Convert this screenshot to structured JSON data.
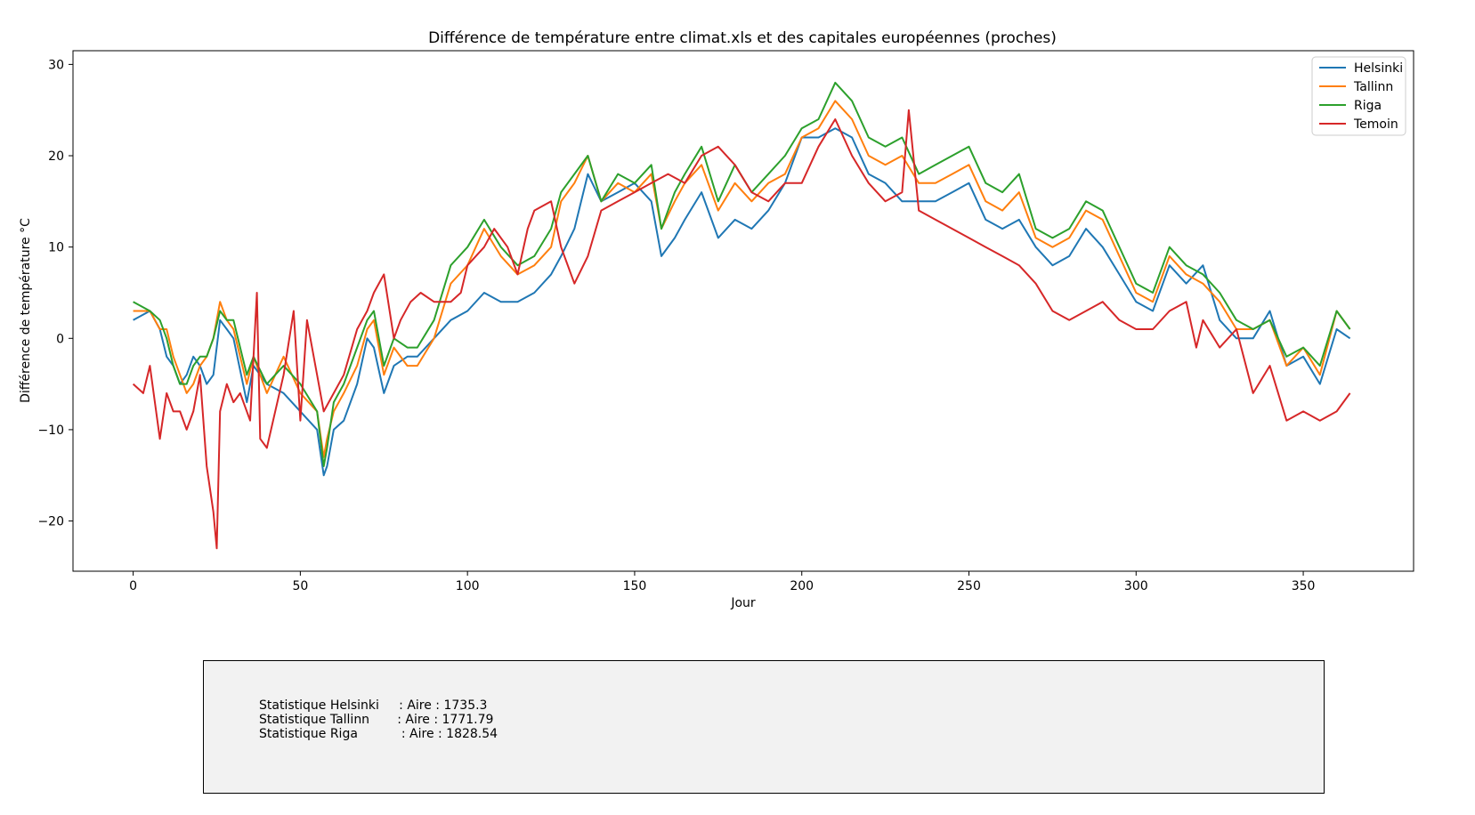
{
  "chart_data": {
    "type": "line",
    "title": "Différence de température entre climat.xls et des capitales européennes (proches)",
    "xlabel": "Jour",
    "ylabel": "Différence de température °C",
    "xlim": [
      -18,
      383
    ],
    "ylim": [
      -25.5,
      31.5
    ],
    "xticks": [
      0,
      50,
      100,
      150,
      200,
      250,
      300,
      350
    ],
    "yticks": [
      -20,
      -10,
      0,
      10,
      20,
      30
    ],
    "xtick_labels": [
      "0",
      "50",
      "100",
      "150",
      "200",
      "250",
      "300",
      "350"
    ],
    "ytick_labels": [
      "−20",
      "−10",
      "0",
      "10",
      "20",
      "30"
    ],
    "grid": false,
    "legend": "top-right",
    "series": [
      {
        "name": "Helsinki",
        "color": "#1f77b4",
        "x": [
          0,
          5,
          8,
          10,
          12,
          14,
          16,
          18,
          20,
          22,
          24,
          26,
          28,
          30,
          34,
          36,
          40,
          45,
          50,
          55,
          57,
          58,
          60,
          63,
          67,
          70,
          72,
          75,
          78,
          82,
          85,
          90,
          95,
          100,
          105,
          110,
          115,
          120,
          125,
          128,
          132,
          136,
          140,
          145,
          150,
          155,
          158,
          162,
          165,
          170,
          175,
          180,
          185,
          190,
          195,
          200,
          205,
          210,
          215,
          220,
          225,
          230,
          235,
          240,
          245,
          250,
          255,
          260,
          265,
          270,
          275,
          280,
          285,
          290,
          295,
          300,
          305,
          310,
          315,
          320,
          325,
          330,
          335,
          340,
          345,
          350,
          355,
          360,
          364
        ],
        "y": [
          2,
          3,
          1,
          -2,
          -3,
          -5,
          -4,
          -2,
          -3,
          -5,
          -4,
          2,
          1,
          0,
          -7,
          -3,
          -5,
          -6,
          -8,
          -10,
          -15,
          -14,
          -10,
          -9,
          -5,
          0,
          -1,
          -6,
          -3,
          -2,
          -2,
          0,
          2,
          3,
          5,
          4,
          4,
          5,
          7,
          9,
          12,
          18,
          15,
          16,
          17,
          15,
          9,
          11,
          13,
          16,
          11,
          13,
          12,
          14,
          17,
          22,
          22,
          23,
          22,
          18,
          17,
          15,
          15,
          15,
          16,
          17,
          13,
          12,
          13,
          10,
          8,
          9,
          12,
          10,
          7,
          4,
          3,
          8,
          6,
          8,
          2,
          0,
          0,
          3,
          -3,
          -2,
          -5,
          1,
          0
        ]
      },
      {
        "name": "Tallinn",
        "color": "#ff7f0e",
        "x": [
          0,
          5,
          8,
          10,
          12,
          14,
          16,
          18,
          20,
          22,
          24,
          26,
          28,
          30,
          34,
          36,
          40,
          45,
          50,
          55,
          57,
          58,
          60,
          63,
          67,
          70,
          72,
          75,
          78,
          82,
          85,
          90,
          95,
          100,
          105,
          110,
          115,
          120,
          125,
          128,
          132,
          136,
          140,
          145,
          150,
          155,
          158,
          162,
          165,
          170,
          175,
          180,
          185,
          190,
          195,
          200,
          205,
          210,
          215,
          220,
          225,
          230,
          235,
          240,
          245,
          250,
          255,
          260,
          265,
          270,
          275,
          280,
          285,
          290,
          295,
          300,
          305,
          310,
          315,
          320,
          325,
          330,
          335,
          340,
          345,
          350,
          355,
          360,
          364
        ],
        "y": [
          3,
          3,
          1,
          1,
          -2,
          -4,
          -6,
          -5,
          -3,
          -2,
          0,
          4,
          2,
          1,
          -5,
          -2,
          -6,
          -2,
          -6,
          -8,
          -13,
          -11,
          -8,
          -6,
          -3,
          1,
          2,
          -4,
          -1,
          -3,
          -3,
          0,
          6,
          8,
          12,
          9,
          7,
          8,
          10,
          15,
          17,
          20,
          15,
          17,
          16,
          18,
          12,
          15,
          17,
          19,
          14,
          17,
          15,
          17,
          18,
          22,
          23,
          26,
          24,
          20,
          19,
          20,
          17,
          17,
          18,
          19,
          15,
          14,
          16,
          11,
          10,
          11,
          14,
          13,
          9,
          5,
          4,
          9,
          7,
          6,
          4,
          1,
          1,
          2,
          -3,
          -1,
          -4,
          3,
          1
        ]
      },
      {
        "name": "Riga",
        "color": "#2ca02c",
        "x": [
          0,
          5,
          8,
          10,
          12,
          14,
          16,
          18,
          20,
          22,
          24,
          26,
          28,
          30,
          34,
          36,
          40,
          45,
          50,
          55,
          57,
          58,
          60,
          63,
          67,
          70,
          72,
          75,
          78,
          82,
          85,
          90,
          95,
          100,
          105,
          110,
          115,
          120,
          125,
          128,
          132,
          136,
          140,
          145,
          150,
          155,
          158,
          162,
          165,
          170,
          175,
          180,
          185,
          190,
          195,
          200,
          205,
          210,
          215,
          220,
          225,
          230,
          235,
          240,
          245,
          250,
          255,
          260,
          265,
          270,
          275,
          280,
          285,
          290,
          295,
          300,
          305,
          310,
          315,
          320,
          325,
          330,
          335,
          340,
          345,
          350,
          355,
          360,
          364
        ],
        "y": [
          4,
          3,
          2,
          0,
          -3,
          -5,
          -5,
          -3,
          -2,
          -2,
          0,
          3,
          2,
          2,
          -4,
          -2,
          -5,
          -3,
          -5,
          -8,
          -14,
          -12,
          -7,
          -5,
          -1,
          2,
          3,
          -3,
          0,
          -1,
          -1,
          2,
          8,
          10,
          13,
          10,
          8,
          9,
          12,
          16,
          18,
          20,
          15,
          18,
          17,
          19,
          12,
          16,
          18,
          21,
          15,
          19,
          16,
          18,
          20,
          23,
          24,
          28,
          26,
          22,
          21,
          22,
          18,
          19,
          20,
          21,
          17,
          16,
          18,
          12,
          11,
          12,
          15,
          14,
          10,
          6,
          5,
          10,
          8,
          7,
          5,
          2,
          1,
          2,
          -2,
          -1,
          -3,
          3,
          1
        ]
      },
      {
        "name": "Temoin",
        "color": "#d62728",
        "x": [
          0,
          3,
          5,
          8,
          10,
          12,
          14,
          16,
          18,
          20,
          22,
          24,
          25,
          26,
          28,
          30,
          32,
          35,
          37,
          38,
          40,
          45,
          48,
          50,
          52,
          55,
          57,
          60,
          63,
          67,
          70,
          72,
          75,
          78,
          80,
          83,
          86,
          90,
          95,
          98,
          100,
          105,
          108,
          112,
          115,
          118,
          120,
          125,
          128,
          132,
          136,
          140,
          145,
          150,
          155,
          160,
          165,
          170,
          175,
          180,
          185,
          190,
          195,
          200,
          205,
          210,
          215,
          220,
          225,
          230,
          232,
          235,
          240,
          245,
          250,
          255,
          260,
          265,
          270,
          275,
          280,
          285,
          290,
          295,
          300,
          305,
          310,
          315,
          318,
          320,
          325,
          330,
          335,
          340,
          345,
          350,
          355,
          360,
          364
        ],
        "y": [
          -5,
          -6,
          -3,
          -11,
          -6,
          -8,
          -8,
          -10,
          -8,
          -4,
          -14,
          -19,
          -23,
          -8,
          -5,
          -7,
          -6,
          -9,
          5,
          -11,
          -12,
          -4,
          3,
          -9,
          2,
          -4,
          -8,
          -6,
          -4,
          1,
          3,
          5,
          7,
          0,
          2,
          4,
          5,
          4,
          4,
          5,
          8,
          10,
          12,
          10,
          7,
          12,
          14,
          15,
          10,
          6,
          9,
          14,
          15,
          16,
          17,
          18,
          17,
          20,
          21,
          19,
          16,
          15,
          17,
          17,
          21,
          24,
          20,
          17,
          15,
          16,
          25,
          14,
          13,
          12,
          11,
          10,
          9,
          8,
          6,
          3,
          2,
          3,
          4,
          2,
          1,
          1,
          3,
          4,
          -1,
          2,
          -1,
          1,
          -6,
          -3,
          -9,
          -8,
          -9,
          -8,
          -6
        ]
      }
    ]
  },
  "stats": {
    "lines": [
      "Statistique Helsinki     : Aire : 1735.3",
      "Statistique Tallinn       : Aire : 1771.79",
      "Statistique Riga           : Aire : 1828.54"
    ]
  }
}
